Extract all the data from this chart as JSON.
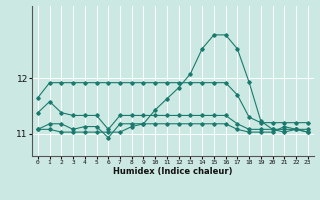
{
  "xlabel": "Humidex (Indice chaleur)",
  "bg_color": "#cce8e2",
  "grid_color": "#ffffff",
  "line_color": "#1a7a6e",
  "x": [
    0,
    1,
    2,
    3,
    4,
    5,
    6,
    7,
    8,
    9,
    10,
    11,
    12,
    13,
    14,
    15,
    16,
    17,
    18,
    19,
    20,
    21,
    22,
    23
  ],
  "series": [
    [
      11.65,
      11.92,
      11.92,
      11.92,
      11.92,
      11.92,
      11.92,
      11.92,
      11.92,
      11.92,
      11.92,
      11.92,
      11.92,
      11.92,
      11.92,
      11.92,
      11.92,
      11.7,
      11.3,
      11.2,
      11.2,
      11.2,
      11.2,
      11.2
    ],
    [
      11.38,
      11.58,
      11.38,
      11.33,
      11.33,
      11.33,
      11.08,
      11.33,
      11.33,
      11.33,
      11.33,
      11.33,
      11.33,
      11.33,
      11.33,
      11.33,
      11.33,
      11.18,
      11.08,
      11.08,
      11.08,
      11.08,
      11.08,
      11.08
    ],
    [
      11.08,
      11.18,
      11.18,
      11.08,
      11.13,
      11.13,
      10.93,
      11.18,
      11.18,
      11.18,
      11.18,
      11.18,
      11.18,
      11.18,
      11.18,
      11.18,
      11.18,
      11.08,
      11.03,
      11.03,
      11.03,
      11.13,
      11.08,
      11.03
    ],
    [
      11.08,
      11.08,
      11.03,
      11.03,
      11.03,
      11.03,
      11.03,
      11.03,
      11.13,
      11.18,
      11.43,
      11.63,
      11.83,
      12.08,
      12.53,
      12.78,
      12.78,
      12.53,
      11.93,
      11.23,
      11.08,
      11.03,
      11.08,
      11.03
    ]
  ],
  "yticks": [
    11,
    12
  ],
  "ylim": [
    10.6,
    13.3
  ],
  "xlim": [
    -0.5,
    23.5
  ],
  "xticks": [
    0,
    1,
    2,
    3,
    4,
    5,
    6,
    7,
    8,
    9,
    10,
    11,
    12,
    13,
    14,
    15,
    16,
    17,
    18,
    19,
    20,
    21,
    22,
    23
  ]
}
